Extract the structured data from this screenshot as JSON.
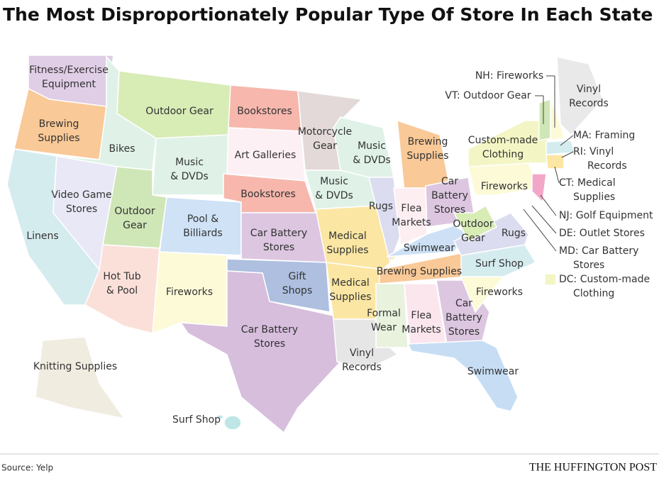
{
  "title": "The Most Disproportionately Popular Type Of Store In Each State",
  "source": "Source: Yelp",
  "brand": "THE HUFFINGTON POST",
  "regions": [
    {
      "lines": [
        "Fitness/Exercise",
        "Equipment"
      ]
    },
    {
      "lines": [
        "Brewing",
        "Supplies"
      ]
    },
    {
      "lines": [
        "Bikes"
      ]
    },
    {
      "lines": [
        "Outdoor Gear"
      ]
    },
    {
      "lines": [
        "Bookstores"
      ]
    },
    {
      "lines": [
        "Motorcycle",
        "Gear"
      ]
    },
    {
      "lines": [
        "Music",
        "& DVDs"
      ]
    },
    {
      "lines": [
        "Brewing",
        "Supplies"
      ]
    },
    {
      "lines": [
        "Custom-made",
        "Clothing"
      ]
    },
    {
      "lines": [
        "Vinyl",
        "Records"
      ]
    },
    {
      "lines": [
        "Music",
        "& DVDs"
      ]
    },
    {
      "lines": [
        "Art Galleries"
      ]
    },
    {
      "lines": [
        "Bookstores"
      ]
    },
    {
      "lines": [
        "Music",
        "& DVDs"
      ]
    },
    {
      "lines": [
        "Linens"
      ]
    },
    {
      "lines": [
        "Video Game",
        "Stores"
      ]
    },
    {
      "lines": [
        "Outdoor",
        "Gear"
      ]
    },
    {
      "lines": [
        "Pool &",
        "Billiards"
      ]
    },
    {
      "lines": [
        "Car Battery",
        "Stores"
      ]
    },
    {
      "lines": [
        "Medical",
        "Supplies"
      ]
    },
    {
      "lines": [
        "Rugs"
      ]
    },
    {
      "lines": [
        "Flea",
        "Markets"
      ]
    },
    {
      "lines": [
        "Car",
        "Battery",
        "Stores"
      ]
    },
    {
      "lines": [
        "Outdoor",
        "Gear"
      ]
    },
    {
      "lines": [
        "Fireworks"
      ]
    },
    {
      "lines": [
        "Rugs"
      ]
    },
    {
      "lines": [
        "Swimwear"
      ]
    },
    {
      "lines": [
        "Brewing Supplies"
      ]
    },
    {
      "lines": [
        "Surf Shop"
      ]
    },
    {
      "lines": [
        "Hot Tub",
        "& Pool"
      ]
    },
    {
      "lines": [
        "Fireworks"
      ]
    },
    {
      "lines": [
        "Gift",
        "Shops"
      ]
    },
    {
      "lines": [
        "Medical",
        "Supplies"
      ]
    },
    {
      "lines": [
        "Formal",
        "Wear"
      ]
    },
    {
      "lines": [
        "Flea",
        "Markets"
      ]
    },
    {
      "lines": [
        "Car",
        "Battery",
        "Stores"
      ]
    },
    {
      "lines": [
        "Fireworks"
      ]
    },
    {
      "lines": [
        "Car Battery",
        "Stores"
      ]
    },
    {
      "lines": [
        "Vinyl",
        "Records"
      ]
    },
    {
      "lines": [
        "Swimwear"
      ]
    },
    {
      "lines": [
        "Knitting Supplies"
      ]
    },
    {
      "lines": [
        "Surf Shop"
      ]
    }
  ],
  "callouts": [
    {
      "lines": [
        "NH: Fireworks"
      ]
    },
    {
      "lines": [
        "VT: Outdoor Gear"
      ]
    },
    {
      "lines": [
        "MA: Framing"
      ]
    },
    {
      "lines": [
        "RI: Vinyl",
        "Records"
      ]
    },
    {
      "lines": [
        "CT: Medical",
        "Supplies"
      ]
    },
    {
      "lines": [
        "NJ: Golf Equipment"
      ]
    },
    {
      "lines": [
        "DE: Outlet Stores"
      ]
    },
    {
      "lines": [
        "MD: Car Battery",
        "Stores"
      ]
    },
    {
      "lines": [
        "DC: Custom-made",
        "Clothing"
      ]
    }
  ]
}
